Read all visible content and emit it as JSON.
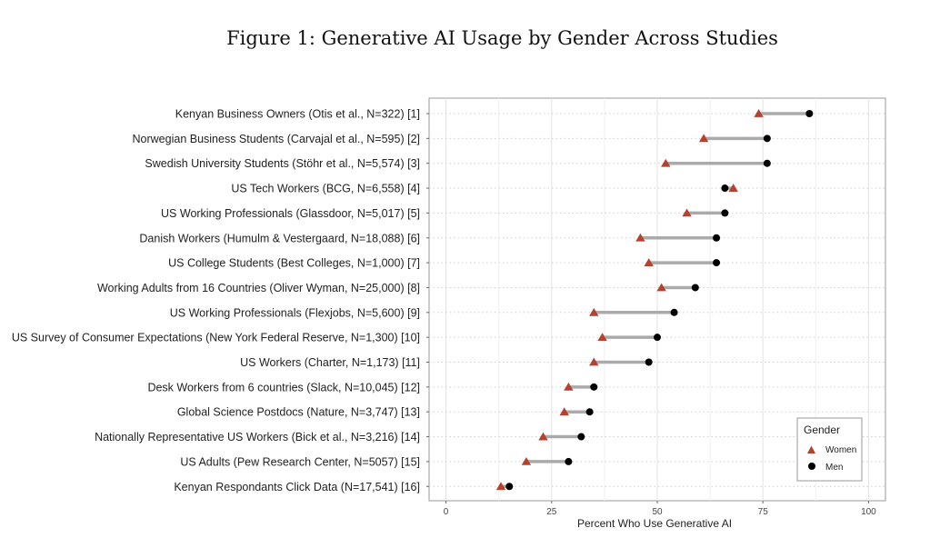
{
  "figure_title": "Figure 1: Generative AI Usage by Gender Across Studies",
  "chart_data": {
    "type": "dumbbell",
    "xlabel": "Percent Who Use Generative AI",
    "xlim": [
      -4,
      104
    ],
    "xticks": [
      0,
      25,
      50,
      75,
      100
    ],
    "grid": true,
    "legend_position": "bottom-right",
    "colors": {
      "women": "#b5412f",
      "men": "#000000",
      "connector": "#aaaaaa",
      "panel_border": "#999999",
      "grid": "#d8d8d8"
    },
    "legend": {
      "title": "Gender",
      "women": "Women",
      "men": "Men"
    },
    "categories": [
      "Kenyan Business Owners (Otis et al., N=322) [1]",
      "Norwegian Business Students (Carvajal et al., N=595) [2]",
      "Swedish University Students (Stöhr et al., N=5,574)  [3]",
      "US Tech Workers (BCG, N=6,558) [4]",
      "US Working Professionals (Glassdoor, N=5,017) [5]",
      "Danish Workers (Humulm & Vestergaard, N=18,088) [6]",
      "US College Students (Best Colleges, N=1,000) [7]",
      "Working Adults from 16 Countries (Oliver Wyman, N=25,000) [8]",
      "US Working Professionals (Flexjobs, N=5,600) [9]",
      "US Survey of Consumer Expectations (New York Federal Reserve, N=1,300) [10]",
      "US Workers (Charter, N=1,173) [11]",
      "Desk Workers from 6 countries (Slack, N=10,045)  [12]",
      "Global Science Postdocs (Nature, N=3,747) [13]",
      "Nationally Representative US Workers (Bick et al., N=3,216) [14]",
      "US Adults (Pew Research Center, N=5057) [15]",
      "Kenyan Respondants Click Data (N=17,541) [16]"
    ],
    "series": [
      {
        "name": "Women",
        "values": [
          74,
          61,
          52,
          68,
          57,
          46,
          48,
          51,
          35,
          37,
          35,
          29,
          28,
          23,
          19,
          13
        ]
      },
      {
        "name": "Men",
        "values": [
          86,
          76,
          76,
          66,
          66,
          64,
          64,
          59,
          54,
          50,
          48,
          35,
          34,
          32,
          29,
          15
        ]
      }
    ]
  }
}
